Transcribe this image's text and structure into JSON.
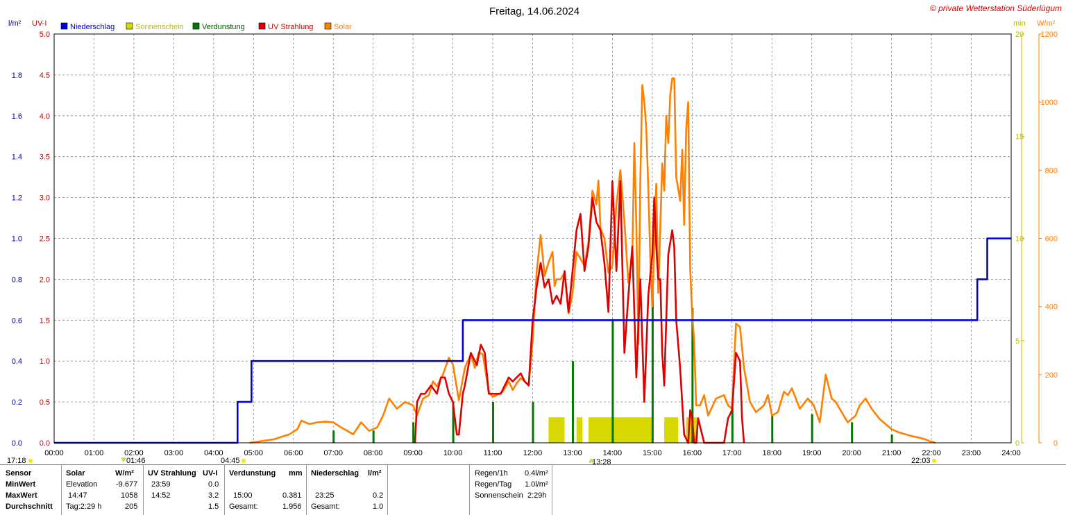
{
  "title": "Freitag, 14.06.2024",
  "copyright": "© private Wetterstation Süderlügum",
  "left_axis_units": {
    "rain": "l/m²",
    "uv": "UV-I"
  },
  "right_axis_units": {
    "sun": "min",
    "solar": "W/m²"
  },
  "legend": [
    {
      "label": "Niederschlag",
      "color": "#0000dd"
    },
    {
      "label": "Sonnenschein",
      "color": "#d8d800"
    },
    {
      "label": "Verdunstung",
      "color": "#007a00"
    },
    {
      "label": "UV Strahlung",
      "color": "#dd0000"
    },
    {
      "label": "Solar",
      "color": "#ff8000"
    }
  ],
  "markers": {
    "sunrise_left": "17:18",
    "elev_min": "01:46",
    "sunrise": "04:45",
    "solar_max": "13:28",
    "sunset": "22:03"
  },
  "chart_data": {
    "type": "line",
    "title": "Freitag, 14.06.2024",
    "x_ticks": [
      "00:00",
      "01:00",
      "02:00",
      "03:00",
      "04:00",
      "05:00",
      "06:00",
      "07:00",
      "08:00",
      "09:00",
      "10:00",
      "11:00",
      "12:00",
      "13:00",
      "14:00",
      "15:00",
      "16:00",
      "17:00",
      "18:00",
      "19:00",
      "20:00",
      "21:00",
      "22:00",
      "23:00",
      "24:00"
    ],
    "axes": {
      "rain": {
        "label": "l/m²",
        "range": [
          0,
          2.0
        ],
        "ticks": [
          "0.0",
          "0.2",
          "0.4",
          "0.6",
          "0.8",
          "1.0",
          "1.2",
          "1.4",
          "1.6",
          "1.8"
        ],
        "color": "#0000aa"
      },
      "uv": {
        "label": "UV-I",
        "range": [
          0,
          5.0
        ],
        "ticks": [
          "0.0",
          "0.5",
          "1.0",
          "1.5",
          "2.0",
          "2.5",
          "3.0",
          "3.5",
          "4.0",
          "4.5",
          "5.0"
        ],
        "color": "#cc0000"
      },
      "sun": {
        "label": "min",
        "range": [
          0,
          20
        ],
        "ticks": [
          "0",
          "5",
          "10",
          "15",
          "20"
        ],
        "color": "#bbbb00"
      },
      "solar": {
        "label": "W/m²",
        "range": [
          0,
          1200
        ],
        "ticks": [
          "0",
          "200",
          "400",
          "600",
          "800",
          "1000",
          "1200"
        ],
        "color": "#ff8000"
      }
    },
    "grid": true,
    "series": [
      {
        "name": "Niederschlag",
        "axis": "rain",
        "color": "#0000dd",
        "step": true,
        "x": [
          0,
          4.6,
          4.6,
          4.95,
          4.95,
          10.25,
          10.25,
          23.15,
          23.15,
          23.4,
          23.4,
          24
        ],
        "y": [
          0,
          0,
          0.2,
          0.2,
          0.4,
          0.4,
          0.6,
          0.6,
          0.8,
          0.8,
          1.0,
          1.0
        ]
      },
      {
        "name": "Solar",
        "axis": "solar",
        "color": "#ff8000",
        "x": [
          4.9,
          5.5,
          5.9,
          6.1,
          6.2,
          6.4,
          6.6,
          6.8,
          7.0,
          7.2,
          7.5,
          7.7,
          7.9,
          8.1,
          8.25,
          8.4,
          8.6,
          8.8,
          9.0,
          9.1,
          9.25,
          9.4,
          9.5,
          9.6,
          9.75,
          9.9,
          10.0,
          10.15,
          10.3,
          10.45,
          10.55,
          10.65,
          10.75,
          10.9,
          11.0,
          11.1,
          11.25,
          11.4,
          11.5,
          11.6,
          11.7,
          11.8,
          11.9,
          12.0,
          12.1,
          12.2,
          12.3,
          12.4,
          12.5,
          12.55,
          12.6,
          12.7,
          12.8,
          12.9,
          13.0,
          13.1,
          13.2,
          13.3,
          13.4,
          13.5,
          13.6,
          13.65,
          13.7,
          13.8,
          13.9,
          14.0,
          14.1,
          14.2,
          14.3,
          14.4,
          14.5,
          14.55,
          14.6,
          14.65,
          14.7,
          14.75,
          14.8,
          14.85,
          14.9,
          14.95,
          15.0,
          15.1,
          15.15,
          15.25,
          15.3,
          15.35,
          15.4,
          15.45,
          15.5,
          15.55,
          15.6,
          15.7,
          15.75,
          15.8,
          15.85,
          15.9,
          15.95,
          16.0,
          16.05,
          16.1,
          16.2,
          16.3,
          16.4,
          16.6,
          16.8,
          16.9,
          17.0,
          17.05,
          17.1,
          17.2,
          17.3,
          17.45,
          17.6,
          17.8,
          17.9,
          18.0,
          18.15,
          18.3,
          18.4,
          18.5,
          18.7,
          18.9,
          19.05,
          19.2,
          19.35,
          19.5,
          19.6,
          19.7,
          19.8,
          19.9,
          20.0,
          20.1,
          20.2,
          20.35,
          20.5,
          20.7,
          20.9,
          21.0,
          21.2,
          21.5,
          21.7,
          21.85,
          21.95,
          22.1
        ],
        "y": [
          0,
          10,
          25,
          40,
          65,
          55,
          60,
          62,
          60,
          45,
          25,
          60,
          35,
          45,
          80,
          130,
          100,
          120,
          110,
          80,
          130,
          140,
          180,
          165,
          200,
          250,
          230,
          125,
          220,
          260,
          220,
          265,
          260,
          150,
          135,
          140,
          150,
          180,
          155,
          175,
          190,
          180,
          170,
          300,
          500,
          610,
          490,
          530,
          560,
          460,
          480,
          480,
          500,
          380,
          440,
          560,
          540,
          520,
          590,
          740,
          700,
          770,
          630,
          600,
          500,
          520,
          700,
          800,
          650,
          470,
          550,
          880,
          640,
          290,
          770,
          1050,
          1000,
          920,
          750,
          540,
          400,
          760,
          440,
          820,
          740,
          960,
          880,
          1020,
          1070,
          1070,
          780,
          710,
          860,
          640,
          920,
          1000,
          510,
          380,
          300,
          110,
          110,
          140,
          80,
          130,
          140,
          110,
          100,
          230,
          350,
          340,
          220,
          120,
          90,
          110,
          140,
          80,
          90,
          150,
          140,
          160,
          100,
          130,
          110,
          60,
          200,
          130,
          120,
          100,
          80,
          60,
          70,
          80,
          110,
          130,
          100,
          70,
          50,
          40,
          30,
          20,
          15,
          10,
          5,
          0
        ]
      },
      {
        "name": "UV Strahlung",
        "axis": "uv",
        "color": "#dd0000",
        "x": [
          9.05,
          9.1,
          9.2,
          9.3,
          9.45,
          9.6,
          9.7,
          9.8,
          9.9,
          10.0,
          10.1,
          10.15,
          10.25,
          10.3,
          10.45,
          10.6,
          10.7,
          10.8,
          10.9,
          11.0,
          11.2,
          11.4,
          11.5,
          11.6,
          11.7,
          11.8,
          11.9,
          12.0,
          12.1,
          12.2,
          12.3,
          12.4,
          12.5,
          12.6,
          12.7,
          12.8,
          12.9,
          13.0,
          13.1,
          13.2,
          13.3,
          13.4,
          13.5,
          13.6,
          13.7,
          13.8,
          13.9,
          14.0,
          14.1,
          14.2,
          14.3,
          14.4,
          14.5,
          14.6,
          14.7,
          14.8,
          14.9,
          15.0,
          15.05,
          15.1,
          15.15,
          15.2,
          15.25,
          15.3,
          15.4,
          15.5,
          15.55,
          15.6,
          15.7,
          15.8,
          15.9,
          15.95,
          16.0,
          16.05,
          16.1,
          16.15,
          16.2,
          16.3,
          16.5,
          16.8,
          16.9,
          17.0,
          17.1,
          17.2,
          17.25,
          17.3
        ],
        "y": [
          0,
          0.5,
          0.6,
          0.6,
          0.7,
          0.6,
          0.8,
          0.8,
          0.6,
          0.5,
          0.1,
          0.1,
          0.6,
          0.7,
          1.1,
          0.95,
          1.2,
          1.1,
          0.6,
          0.6,
          0.6,
          0.8,
          0.75,
          0.8,
          0.85,
          0.75,
          0.7,
          1.5,
          1.9,
          2.2,
          1.9,
          2.0,
          1.7,
          1.8,
          1.7,
          2.1,
          1.6,
          2.1,
          2.6,
          2.8,
          2.1,
          2.4,
          3.0,
          2.7,
          2.6,
          2.2,
          1.6,
          3.2,
          2.1,
          3.2,
          1.1,
          1.8,
          2.4,
          0.8,
          2.0,
          0.5,
          1.8,
          2.3,
          3.0,
          2.4,
          2.0,
          2.0,
          1.1,
          0.7,
          2.3,
          2.6,
          2.4,
          1.5,
          0.9,
          0.1,
          0.0,
          0.4,
          0.3,
          0.0,
          0.0,
          0.3,
          0.2,
          0.0,
          0.0,
          0.0,
          0.3,
          0.4,
          1.1,
          1.0,
          0.3,
          0.0
        ]
      },
      {
        "name": "Verdunstung",
        "axis": "sun",
        "color": "#007a00",
        "bars": true,
        "x": [
          7.0,
          8.0,
          9.0,
          10.0,
          11.0,
          12.0,
          13.0,
          14.0,
          15.0,
          16.0,
          17.0,
          18.0,
          19.0,
          20.0,
          21.0
        ],
        "y": [
          0.3,
          0.3,
          0.5,
          1.0,
          1.0,
          1.0,
          2.0,
          3.0,
          4.0,
          3.3,
          1.0,
          0.7,
          0.7,
          0.5,
          0.2
        ]
      },
      {
        "name": "Sonnenschein",
        "axis": "sun",
        "color": "#d8d800",
        "bars": true,
        "segments": [
          [
            12.4,
            12.8,
            1.0
          ],
          [
            13.1,
            13.25,
            1.0
          ],
          [
            13.4,
            14.75,
            1.0
          ],
          [
            14.75,
            15.0,
            1.0
          ],
          [
            15.3,
            15.65,
            1.0
          ],
          [
            15.85,
            16.15,
            1.0
          ]
        ]
      }
    ]
  },
  "table": {
    "headers": {
      "sensor": "Sensor",
      "solar": "Solar",
      "solar_unit": "W/m²",
      "uv": "UV Strahlung",
      "uv_unit": "UV-I",
      "verd": "Verdunstung",
      "verd_unit": "mm",
      "nieder": "Niederschlag",
      "nieder_unit": "l/m²"
    },
    "rows": [
      {
        "label": "MinWert",
        "solar_time": "Elevation",
        "solar_val": "-9.677",
        "uv_time": "23:59",
        "uv_val": "0.0",
        "verd_time": "",
        "verd_val": "",
        "nieder_time": "",
        "nieder_val": ""
      },
      {
        "label": "MaxWert",
        "solar_time": "14:47",
        "solar_val": "1058",
        "uv_time": "14:52",
        "uv_val": "3.2",
        "verd_time": "15:00",
        "verd_val": "0.381",
        "nieder_time": "23:25",
        "nieder_val": "0.2"
      },
      {
        "label": "Durchschnitt",
        "solar_time": "Tag:2:29 h",
        "solar_val": "205",
        "uv_time": "",
        "uv_val": "1.5",
        "verd_time": "Gesamt:",
        "verd_val": "1.956",
        "nieder_time": "Gesamt:",
        "nieder_val": "1.0"
      }
    ],
    "summary": [
      {
        "label": "Regen/1h",
        "value": "0.4l/m²"
      },
      {
        "label": "Regen/Tag",
        "value": "1.0l/m²"
      },
      {
        "label": "Sonnenschein",
        "value": "2:29h"
      }
    ]
  }
}
